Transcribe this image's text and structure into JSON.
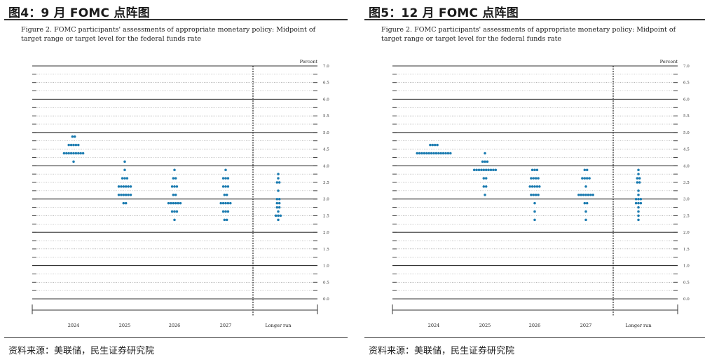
{
  "panels": [
    {
      "title": "图4：9 月 FOMC 点阵图",
      "figure_caption": "Figure 2.  FOMC participants' assessments of appropriate monetary policy: Midpoint of target range or target level for the federal funds rate",
      "source": "资料来源：美联储，民生证券研究院"
    },
    {
      "title": "图5：12 月 FOMC 点阵图",
      "figure_caption": "Figure 2.  FOMC participants' assessments of appropriate monetary policy: Midpoint of target range or target level for the federal funds rate",
      "source": "资料来源：美联储，民生证券研究院"
    }
  ],
  "chart_data": [
    {
      "type": "scatter",
      "ylabel": "Percent",
      "ylim": [
        0,
        7
      ],
      "yticks": [
        "7.0",
        "6.5",
        "6.0",
        "5.5",
        "5.0",
        "4.5",
        "4.0",
        "3.5",
        "3.0",
        "2.5",
        "2.0",
        "1.5",
        "1.0",
        "0.5",
        "0.0"
      ],
      "categories": [
        "2024",
        "2025",
        "2026",
        "2027",
        "Longer run"
      ],
      "series": [
        {
          "category": "2024",
          "points": [
            {
              "y": 4.875,
              "n": 2
            },
            {
              "y": 4.625,
              "n": 5
            },
            {
              "y": 4.375,
              "n": 9
            },
            {
              "y": 4.125,
              "n": 1
            }
          ]
        },
        {
          "category": "2025",
          "points": [
            {
              "y": 4.125,
              "n": 1
            },
            {
              "y": 3.875,
              "n": 1
            },
            {
              "y": 3.625,
              "n": 3
            },
            {
              "y": 3.375,
              "n": 6
            },
            {
              "y": 3.125,
              "n": 6
            },
            {
              "y": 2.875,
              "n": 2
            }
          ]
        },
        {
          "category": "2026",
          "points": [
            {
              "y": 3.875,
              "n": 1
            },
            {
              "y": 3.625,
              "n": 2
            },
            {
              "y": 3.375,
              "n": 3
            },
            {
              "y": 3.125,
              "n": 2
            },
            {
              "y": 2.875,
              "n": 6
            },
            {
              "y": 2.625,
              "n": 3
            },
            {
              "y": 2.375,
              "n": 1
            }
          ]
        },
        {
          "category": "2027",
          "points": [
            {
              "y": 3.875,
              "n": 1
            },
            {
              "y": 3.625,
              "n": 3
            },
            {
              "y": 3.375,
              "n": 3
            },
            {
              "y": 3.125,
              "n": 2
            },
            {
              "y": 2.875,
              "n": 5
            },
            {
              "y": 2.625,
              "n": 3
            },
            {
              "y": 2.375,
              "n": 2
            }
          ]
        },
        {
          "category": "Longer run",
          "points": [
            {
              "y": 3.75,
              "n": 1
            },
            {
              "y": 3.625,
              "n": 1
            },
            {
              "y": 3.5,
              "n": 2
            },
            {
              "y": 3.25,
              "n": 1
            },
            {
              "y": 3.0,
              "n": 2
            },
            {
              "y": 2.875,
              "n": 2
            },
            {
              "y": 2.75,
              "n": 2
            },
            {
              "y": 2.625,
              "n": 1
            },
            {
              "y": 2.5,
              "n": 3
            },
            {
              "y": 2.375,
              "n": 1
            }
          ]
        }
      ]
    },
    {
      "type": "scatter",
      "ylabel": "Percent",
      "ylim": [
        0,
        7
      ],
      "yticks": [
        "7.0",
        "6.5",
        "6.0",
        "5.5",
        "5.0",
        "4.5",
        "4.0",
        "3.5",
        "3.0",
        "2.5",
        "2.0",
        "1.5",
        "1.0",
        "0.5",
        "0.0"
      ],
      "categories": [
        "2024",
        "2025",
        "2026",
        "2027",
        "Longer run"
      ],
      "series": [
        {
          "category": "2024",
          "points": [
            {
              "y": 4.625,
              "n": 4
            },
            {
              "y": 4.375,
              "n": 15
            }
          ]
        },
        {
          "category": "2025",
          "points": [
            {
              "y": 4.375,
              "n": 1
            },
            {
              "y": 4.125,
              "n": 3
            },
            {
              "y": 3.875,
              "n": 10
            },
            {
              "y": 3.625,
              "n": 2
            },
            {
              "y": 3.375,
              "n": 2
            },
            {
              "y": 3.125,
              "n": 1
            }
          ]
        },
        {
          "category": "2026",
          "points": [
            {
              "y": 3.875,
              "n": 3
            },
            {
              "y": 3.625,
              "n": 4
            },
            {
              "y": 3.375,
              "n": 5
            },
            {
              "y": 3.125,
              "n": 4
            },
            {
              "y": 2.875,
              "n": 1
            },
            {
              "y": 2.625,
              "n": 1
            },
            {
              "y": 2.375,
              "n": 1
            }
          ]
        },
        {
          "category": "2027",
          "points": [
            {
              "y": 3.875,
              "n": 2
            },
            {
              "y": 3.625,
              "n": 4
            },
            {
              "y": 3.375,
              "n": 1
            },
            {
              "y": 3.125,
              "n": 7
            },
            {
              "y": 2.875,
              "n": 2
            },
            {
              "y": 2.625,
              "n": 1
            },
            {
              "y": 2.375,
              "n": 1
            }
          ]
        },
        {
          "category": "Longer run",
          "points": [
            {
              "y": 3.875,
              "n": 1
            },
            {
              "y": 3.75,
              "n": 1
            },
            {
              "y": 3.625,
              "n": 2
            },
            {
              "y": 3.5,
              "n": 2
            },
            {
              "y": 3.25,
              "n": 1
            },
            {
              "y": 3.125,
              "n": 1
            },
            {
              "y": 3.0,
              "n": 3
            },
            {
              "y": 2.875,
              "n": 3
            },
            {
              "y": 2.75,
              "n": 1
            },
            {
              "y": 2.625,
              "n": 1
            },
            {
              "y": 2.5,
              "n": 1
            },
            {
              "y": 2.375,
              "n": 1
            }
          ]
        }
      ]
    }
  ]
}
